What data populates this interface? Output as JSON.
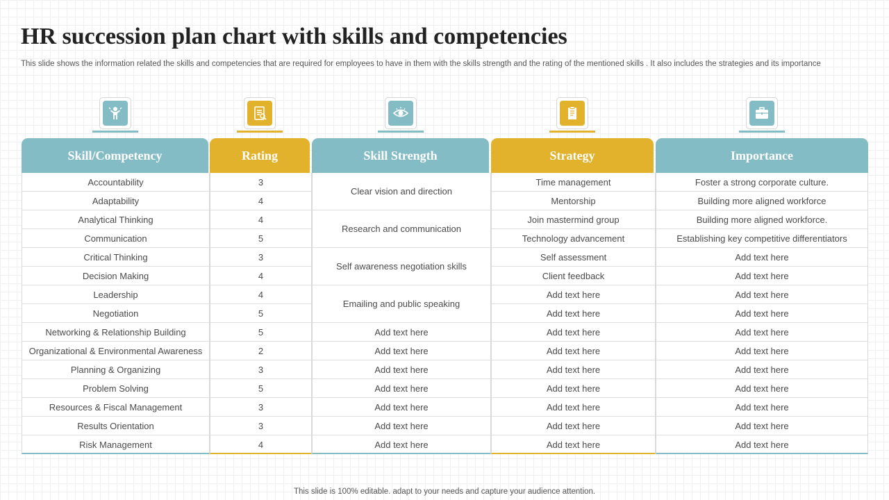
{
  "title": "HR succession plan chart with skills and competencies",
  "subtitle": "This slide shows the information related the skills and competencies that are required for employees to have in them with the skills strength and the rating of the mentioned skills . It also includes the strategies and its importance",
  "footer": "This slide is 100% editable. adapt to your needs and capture your audience attention.",
  "colors": {
    "teal": "#84bcc5",
    "gold": "#e2b22c"
  },
  "icons": [
    "achievement-person-icon",
    "checklist-icon",
    "eye-icon",
    "clipboard-icon",
    "briefcase-icon"
  ],
  "headers": {
    "skill": "Skill/Competency",
    "rating": "Rating",
    "strength": "Skill Strength",
    "strategy": "Strategy",
    "importance": "Importance"
  },
  "skills": [
    "Accountability",
    "Adaptability",
    "Analytical Thinking",
    "Communication",
    "Critical Thinking",
    "Decision Making",
    "Leadership",
    "Negotiation",
    "Networking & Relationship Building",
    "Organizational & Environmental Awareness",
    "Planning & Organizing",
    "Problem Solving",
    "Resources & Fiscal Management",
    "Results Orientation",
    "Risk Management"
  ],
  "ratings": [
    "3",
    "4",
    "4",
    "5",
    "3",
    "4",
    "4",
    "5",
    "5",
    "2",
    "3",
    "5",
    "3",
    "3",
    "4"
  ],
  "strengths": [
    "Clear vision and direction",
    "Research and communication",
    "Self awareness negotiation skills",
    "Emailing and public speaking",
    "Add text here",
    "Add text here",
    "Add text here",
    "Add text here",
    "Add text here",
    "Add text here",
    "Add text here"
  ],
  "strategies": [
    "Time management",
    "Mentorship",
    "Join mastermind group",
    "Technology advancement",
    "Self assessment",
    "Client feedback",
    "Add text here",
    "Add text here",
    "Add text here",
    "Add text here",
    "Add text here",
    "Add text here",
    "Add text here",
    "Add text here",
    "Add text here"
  ],
  "importance": [
    "Foster a strong corporate culture.",
    "Building more aligned workforce",
    "Building more aligned workforce.",
    "Establishing key competitive differentiators",
    "Add text here",
    "Add text here",
    "Add text here",
    "Add text here",
    "Add text here",
    "Add text here",
    "Add text here",
    "Add text here",
    "Add text here",
    "Add text here",
    "Add text here"
  ]
}
